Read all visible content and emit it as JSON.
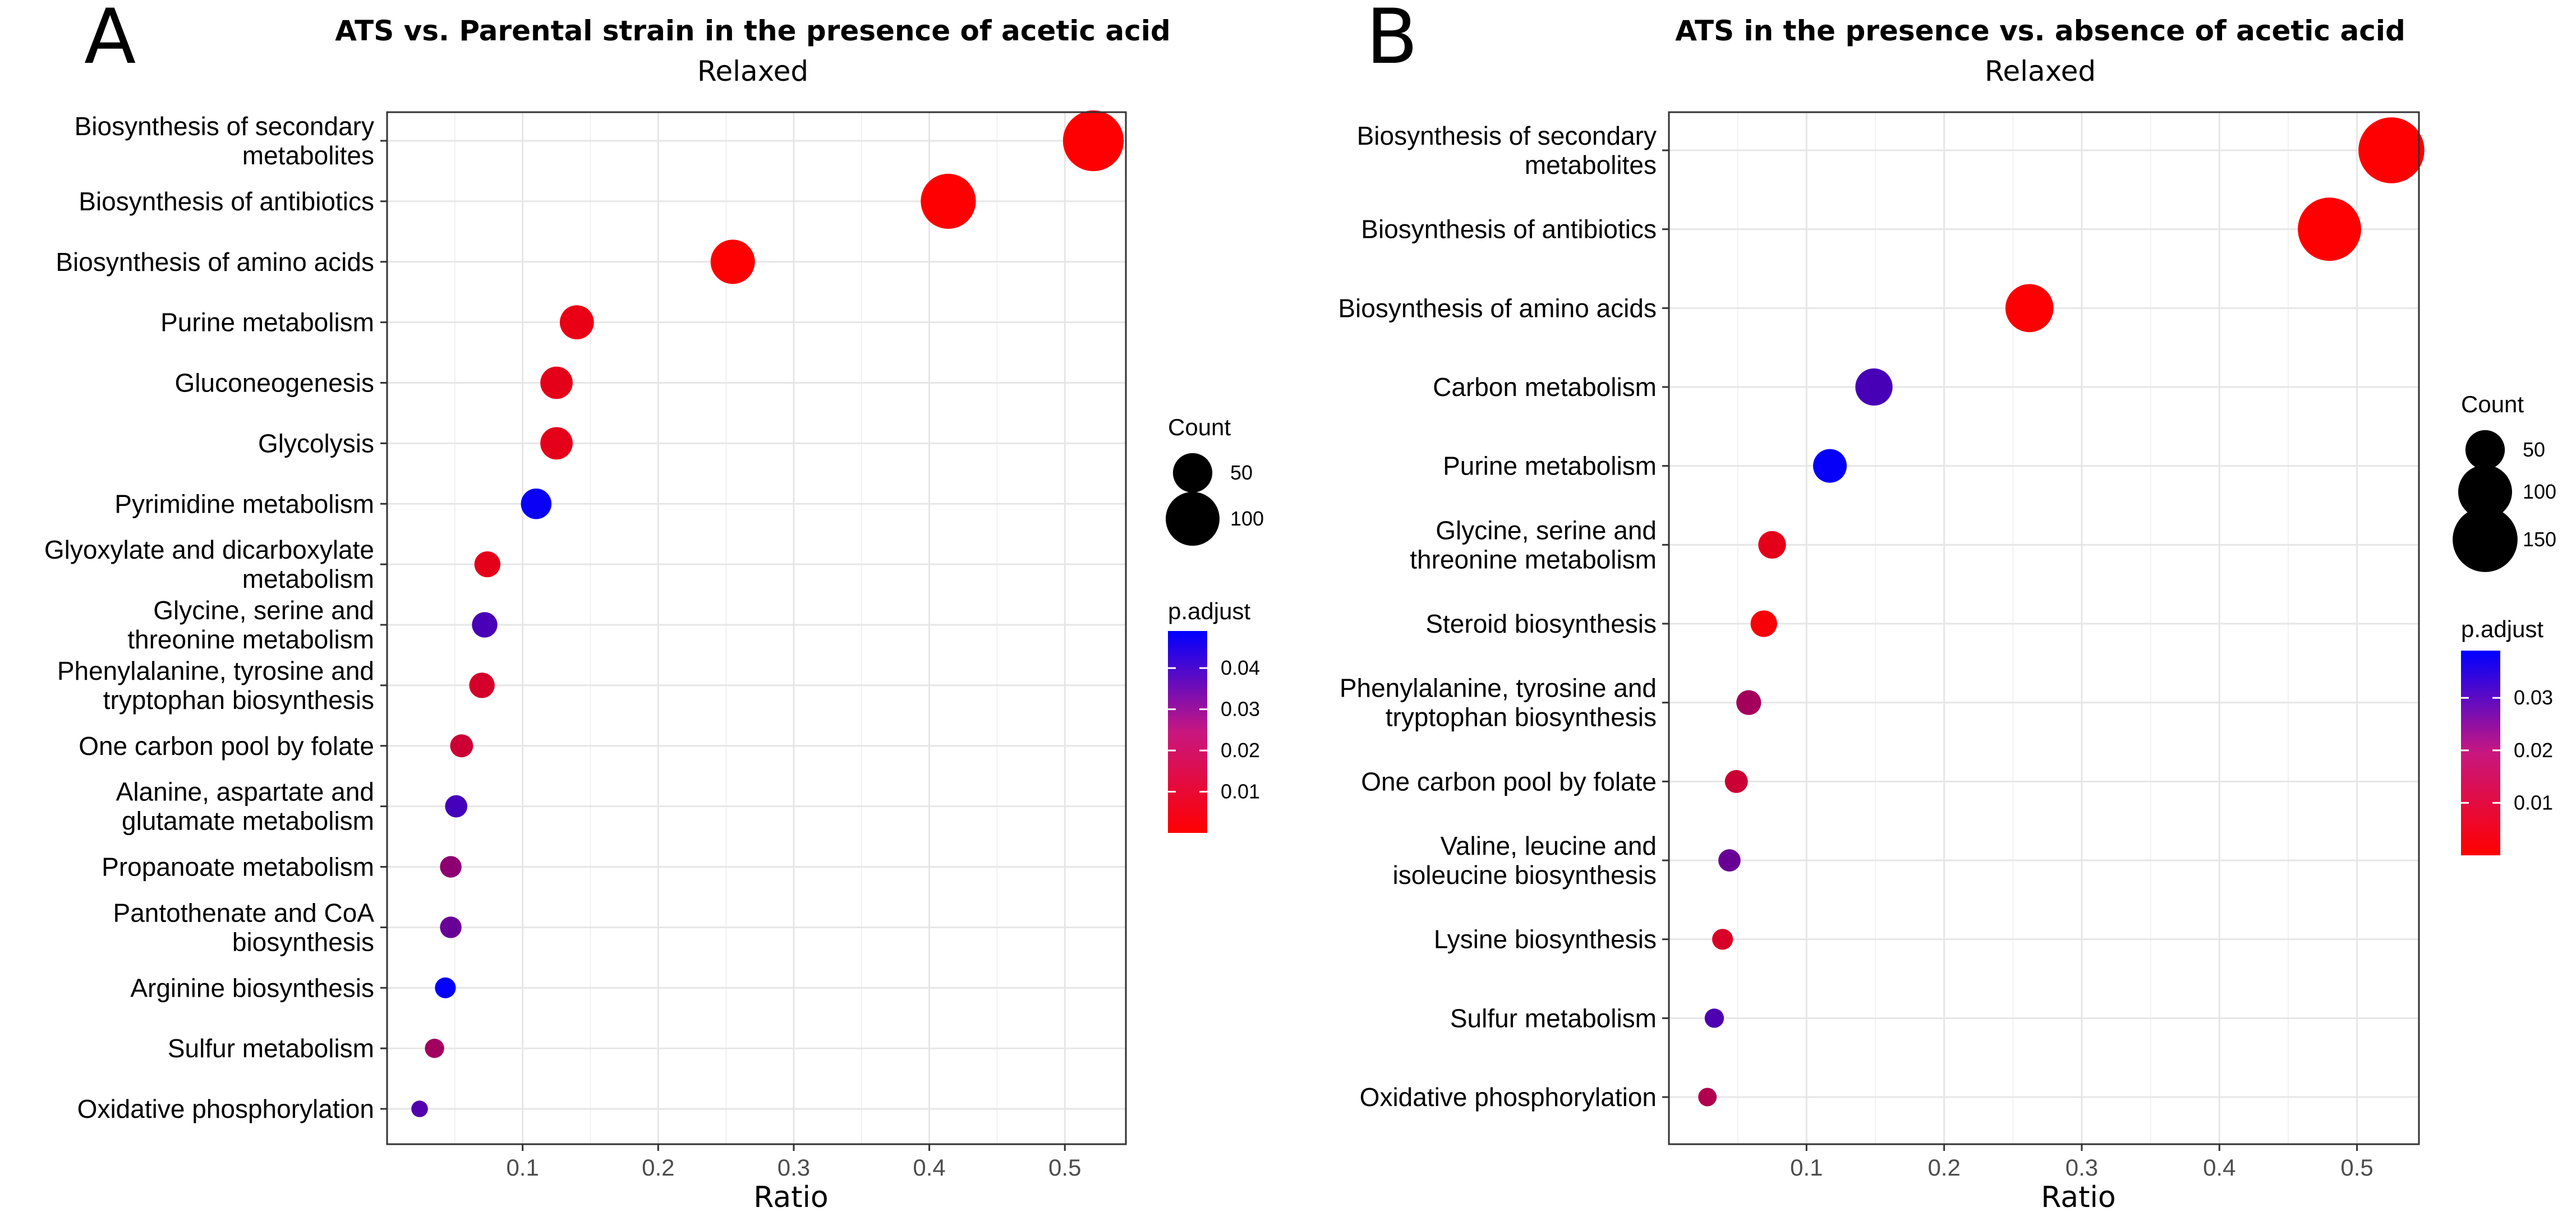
{
  "chart_data": [
    {
      "type": "scatter",
      "panel_label": "A",
      "title": "ATS vs. Parental strain in the presence of acetic acid",
      "subtitle": "Relaxed",
      "xlabel": "Ratio",
      "ylabel": "",
      "xlim": [
        0.0,
        0.545
      ],
      "xticks": [
        0.1,
        0.2,
        0.3,
        0.4,
        0.5
      ],
      "xtick_labels": [
        "0.1",
        "0.2",
        "0.3",
        "0.4",
        "0.5"
      ],
      "grid": true,
      "categories": [
        [
          "Biosynthesis of secondary",
          "metabolites"
        ],
        [
          "Biosynthesis of antibiotics"
        ],
        [
          "Biosynthesis of amino acids"
        ],
        [
          "Purine metabolism"
        ],
        [
          "Gluconeogenesis"
        ],
        [
          "Glycolysis"
        ],
        [
          "Pyrimidine metabolism"
        ],
        [
          "Glyoxylate and dicarboxylate",
          "metabolism"
        ],
        [
          "Glycine, serine and",
          "threonine metabolism"
        ],
        [
          "Phenylalanine, tyrosine and",
          "tryptophan biosynthesis"
        ],
        [
          "One carbon pool by folate"
        ],
        [
          "Alanine, aspartate and",
          "glutamate metabolism"
        ],
        [
          "Propanoate metabolism"
        ],
        [
          "Pantothenate and CoA",
          "biosynthesis"
        ],
        [
          "Arginine biosynthesis"
        ],
        [
          "Sulfur metabolism"
        ],
        [
          "Oxidative phosphorylation"
        ]
      ],
      "points": [
        {
          "ratio": 0.521,
          "count": 130,
          "p_adjust": 0.0001
        },
        {
          "ratio": 0.414,
          "count": 105,
          "p_adjust": 0.0001
        },
        {
          "ratio": 0.255,
          "count": 65,
          "p_adjust": 0.0002
        },
        {
          "ratio": 0.14,
          "count": 36,
          "p_adjust": 0.004
        },
        {
          "ratio": 0.125,
          "count": 32,
          "p_adjust": 0.005
        },
        {
          "ratio": 0.125,
          "count": 32,
          "p_adjust": 0.005
        },
        {
          "ratio": 0.11,
          "count": 28,
          "p_adjust": 0.047
        },
        {
          "ratio": 0.074,
          "count": 19,
          "p_adjust": 0.005
        },
        {
          "ratio": 0.072,
          "count": 18,
          "p_adjust": 0.035
        },
        {
          "ratio": 0.07,
          "count": 18,
          "p_adjust": 0.008
        },
        {
          "ratio": 0.055,
          "count": 14,
          "p_adjust": 0.01
        },
        {
          "ratio": 0.051,
          "count": 13,
          "p_adjust": 0.036
        },
        {
          "ratio": 0.047,
          "count": 12,
          "p_adjust": 0.022
        },
        {
          "ratio": 0.047,
          "count": 12,
          "p_adjust": 0.029
        },
        {
          "ratio": 0.043,
          "count": 11,
          "p_adjust": 0.048
        },
        {
          "ratio": 0.035,
          "count": 9,
          "p_adjust": 0.018
        },
        {
          "ratio": 0.024,
          "count": 6,
          "p_adjust": 0.033
        }
      ],
      "size_legend": {
        "title": "Count",
        "values": [
          50,
          100
        ],
        "labels": [
          "50",
          "100"
        ]
      },
      "color_legend": {
        "title": "p.adjust",
        "range": [
          0.0,
          0.049
        ],
        "ticks": [
          0.01,
          0.02,
          0.03,
          0.04
        ],
        "tick_labels": [
          "0.01",
          "0.02",
          "0.03",
          "0.04"
        ],
        "low_color": "#ff0000",
        "high_color": "#0000ff"
      }
    },
    {
      "type": "scatter",
      "panel_label": "B",
      "title": "ATS in the presence vs. absence of acetic acid",
      "subtitle": "Relaxed",
      "xlabel": "Ratio",
      "ylabel": "",
      "xlim": [
        0.0,
        0.545
      ],
      "xticks": [
        0.1,
        0.2,
        0.3,
        0.4,
        0.5
      ],
      "xtick_labels": [
        "0.1",
        "0.2",
        "0.3",
        "0.4",
        "0.5"
      ],
      "grid": true,
      "categories": [
        [
          "Biosynthesis of secondary",
          "metabolites"
        ],
        [
          "Biosynthesis of antibiotics"
        ],
        [
          "Biosynthesis of amino acids"
        ],
        [
          "Carbon metabolism"
        ],
        [
          "Purine metabolism"
        ],
        [
          "Glycine, serine and",
          "threonine metabolism"
        ],
        [
          "Steroid biosynthesis"
        ],
        [
          "Phenylalanine, tyrosine and",
          "tryptophan biosynthesis"
        ],
        [
          "One carbon pool by folate"
        ],
        [
          "Valine, leucine and",
          "isoleucine biosynthesis"
        ],
        [
          "Lysine biosynthesis"
        ],
        [
          "Sulfur metabolism"
        ],
        [
          "Oxidative phosphorylation"
        ]
      ],
      "points": [
        {
          "ratio": 0.525,
          "count": 155,
          "p_adjust": 0.0001
        },
        {
          "ratio": 0.48,
          "count": 142,
          "p_adjust": 0.0001
        },
        {
          "ratio": 0.262,
          "count": 78,
          "p_adjust": 0.0005
        },
        {
          "ratio": 0.149,
          "count": 44,
          "p_adjust": 0.028
        },
        {
          "ratio": 0.117,
          "count": 35,
          "p_adjust": 0.038
        },
        {
          "ratio": 0.075,
          "count": 22,
          "p_adjust": 0.004
        },
        {
          "ratio": 0.069,
          "count": 20,
          "p_adjust": 0.001
        },
        {
          "ratio": 0.058,
          "count": 17,
          "p_adjust": 0.014
        },
        {
          "ratio": 0.049,
          "count": 14,
          "p_adjust": 0.008
        },
        {
          "ratio": 0.044,
          "count": 13,
          "p_adjust": 0.023
        },
        {
          "ratio": 0.039,
          "count": 11,
          "p_adjust": 0.006
        },
        {
          "ratio": 0.033,
          "count": 9,
          "p_adjust": 0.027
        },
        {
          "ratio": 0.028,
          "count": 8,
          "p_adjust": 0.012
        }
      ],
      "size_legend": {
        "title": "Count",
        "values": [
          50,
          100,
          150
        ],
        "labels": [
          "50",
          "100",
          "150"
        ]
      },
      "color_legend": {
        "title": "p.adjust",
        "range": [
          0.0,
          0.039
        ],
        "ticks": [
          0.01,
          0.02,
          0.03
        ],
        "tick_labels": [
          "0.01",
          "0.02",
          "0.03"
        ],
        "low_color": "#ff0000",
        "high_color": "#0000ff"
      }
    }
  ]
}
